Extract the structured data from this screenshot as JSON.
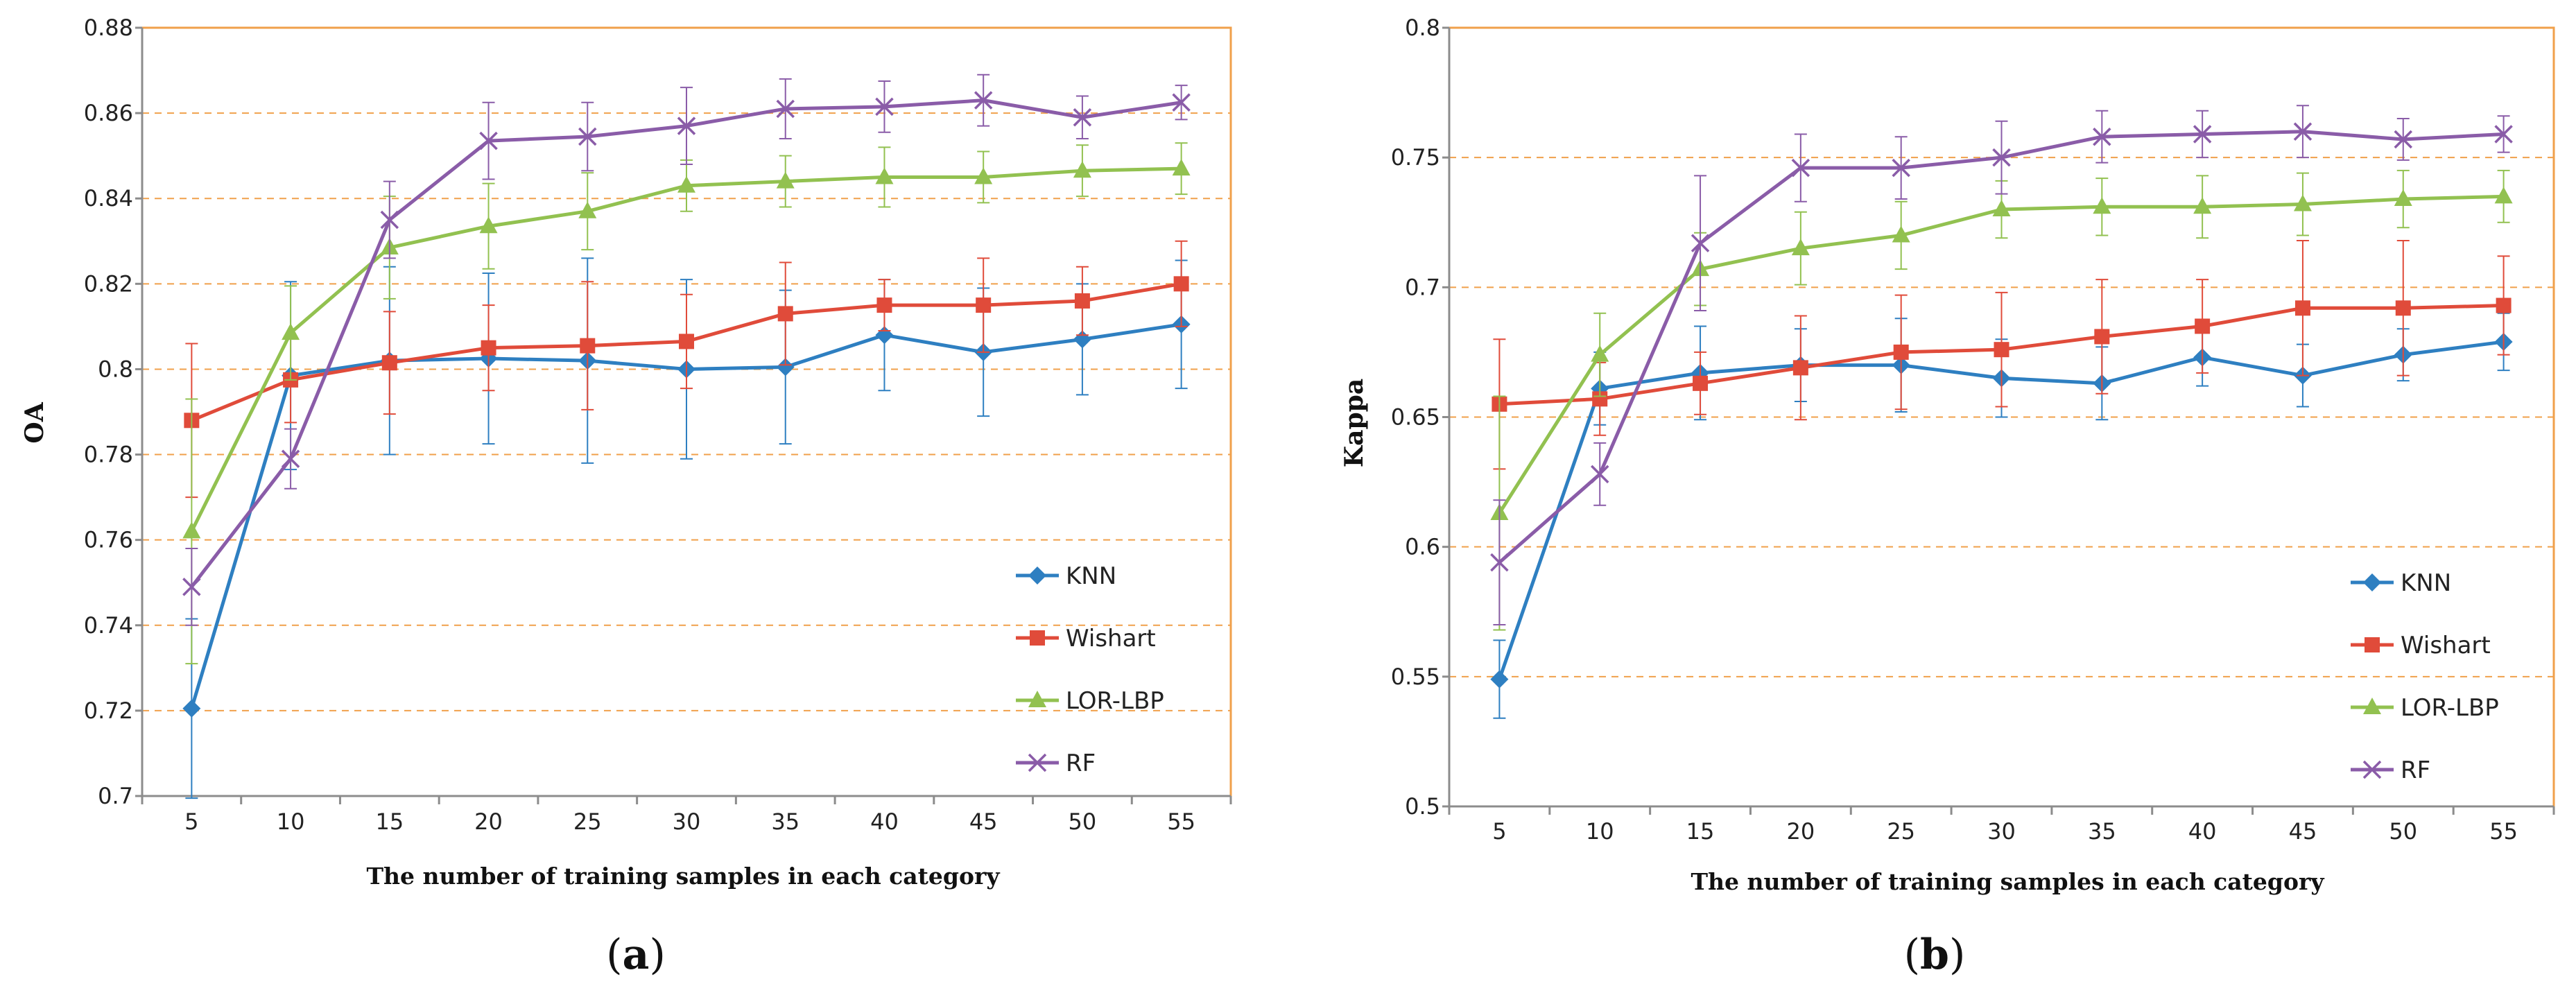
{
  "chart_data": [
    {
      "type": "line",
      "panel_label": {
        "open": "(",
        "letter": "a",
        "close": ")"
      },
      "title": "",
      "xlabel": "The number of training samples in each category",
      "ylabel": "OA",
      "categories": [
        5,
        10,
        15,
        20,
        25,
        30,
        35,
        40,
        45,
        50,
        55
      ],
      "ylim": [
        0.7,
        0.88
      ],
      "yticks": [
        0.7,
        0.72,
        0.74,
        0.76,
        0.78,
        0.8,
        0.82,
        0.84,
        0.86,
        0.88
      ],
      "ytick_labels": [
        "0.7",
        "0.72",
        "0.74",
        "0.76",
        "0.78",
        "0.8",
        "0.82",
        "0.84",
        "0.86",
        "0.88"
      ],
      "grid": "horizontal dashed",
      "legend_position": "bottom-right",
      "series": [
        {
          "name": "KNN",
          "color": "#2E7FC1",
          "marker": "diamond",
          "values": [
            0.7205,
            0.7985,
            0.802,
            0.8025,
            0.802,
            0.8,
            0.8005,
            0.808,
            0.804,
            0.807,
            0.8105
          ],
          "errors": [
            0.021,
            0.022,
            0.022,
            0.02,
            0.024,
            0.021,
            0.018,
            0.013,
            0.015,
            0.013,
            0.015
          ]
        },
        {
          "name": "Wishart",
          "color": "#E04B3A",
          "marker": "square",
          "values": [
            0.788,
            0.7975,
            0.8015,
            0.805,
            0.8055,
            0.8065,
            0.813,
            0.815,
            0.815,
            0.816,
            0.82
          ],
          "errors": [
            0.018,
            0.01,
            0.012,
            0.01,
            0.015,
            0.011,
            0.012,
            0.006,
            0.011,
            0.008,
            0.01
          ]
        },
        {
          "name": "LOR-LBP",
          "color": "#92C150",
          "marker": "triangle",
          "values": [
            0.762,
            0.8085,
            0.8285,
            0.8335,
            0.837,
            0.843,
            0.844,
            0.845,
            0.845,
            0.8465,
            0.847
          ],
          "errors": [
            0.031,
            0.011,
            0.012,
            0.01,
            0.009,
            0.006,
            0.006,
            0.007,
            0.006,
            0.006,
            0.006
          ]
        },
        {
          "name": "RF",
          "color": "#8A5CA8",
          "marker": "x",
          "values": [
            0.749,
            0.779,
            0.835,
            0.8535,
            0.8545,
            0.857,
            0.861,
            0.8615,
            0.863,
            0.859,
            0.8625
          ],
          "errors": [
            0.009,
            0.007,
            0.009,
            0.009,
            0.008,
            0.009,
            0.007,
            0.006,
            0.006,
            0.005,
            0.004
          ]
        }
      ]
    },
    {
      "type": "line",
      "panel_label": {
        "open": "(",
        "letter": "b",
        "close": ")"
      },
      "title": "",
      "xlabel": "The number of training samples in each category",
      "ylabel": "Kappa",
      "categories": [
        5,
        10,
        15,
        20,
        25,
        30,
        35,
        40,
        45,
        50,
        55
      ],
      "ylim": [
        0.5,
        0.8
      ],
      "yticks": [
        0.5,
        0.55,
        0.6,
        0.65,
        0.7,
        0.75,
        0.8
      ],
      "ytick_labels": [
        "0.5",
        "0.55",
        "0.6",
        "0.65",
        "0.7",
        "0.75",
        "0.8"
      ],
      "grid": "horizontal dashed",
      "legend_position": "bottom-right",
      "series": [
        {
          "name": "KNN",
          "color": "#2E7FC1",
          "marker": "diamond",
          "values": [
            0.549,
            0.661,
            0.667,
            0.67,
            0.67,
            0.665,
            0.663,
            0.673,
            0.666,
            0.674,
            0.679
          ],
          "errors": [
            0.015,
            0.014,
            0.018,
            0.014,
            0.018,
            0.015,
            0.014,
            0.011,
            0.012,
            0.01,
            0.011
          ]
        },
        {
          "name": "Wishart",
          "color": "#E04B3A",
          "marker": "square",
          "values": [
            0.655,
            0.657,
            0.663,
            0.669,
            0.675,
            0.676,
            0.681,
            0.685,
            0.692,
            0.692,
            0.693
          ],
          "errors": [
            0.025,
            0.014,
            0.012,
            0.02,
            0.022,
            0.022,
            0.022,
            0.018,
            0.026,
            0.026,
            0.019
          ]
        },
        {
          "name": "LOR-LBP",
          "color": "#92C150",
          "marker": "triangle",
          "values": [
            0.613,
            0.674,
            0.707,
            0.715,
            0.72,
            0.73,
            0.731,
            0.731,
            0.732,
            0.734,
            0.735
          ],
          "errors": [
            0.045,
            0.016,
            0.014,
            0.014,
            0.013,
            0.011,
            0.011,
            0.012,
            0.012,
            0.011,
            0.01
          ]
        },
        {
          "name": "RF",
          "color": "#8A5CA8",
          "marker": "x",
          "values": [
            0.594,
            0.628,
            0.717,
            0.746,
            0.746,
            0.75,
            0.758,
            0.759,
            0.76,
            0.757,
            0.759
          ],
          "errors": [
            0.024,
            0.012,
            0.026,
            0.013,
            0.012,
            0.014,
            0.01,
            0.009,
            0.01,
            0.008,
            0.007
          ]
        }
      ]
    }
  ],
  "colors": {
    "frame": "#F0A04B",
    "grid": "#F0A04B",
    "axis": "#8C8C8C"
  }
}
